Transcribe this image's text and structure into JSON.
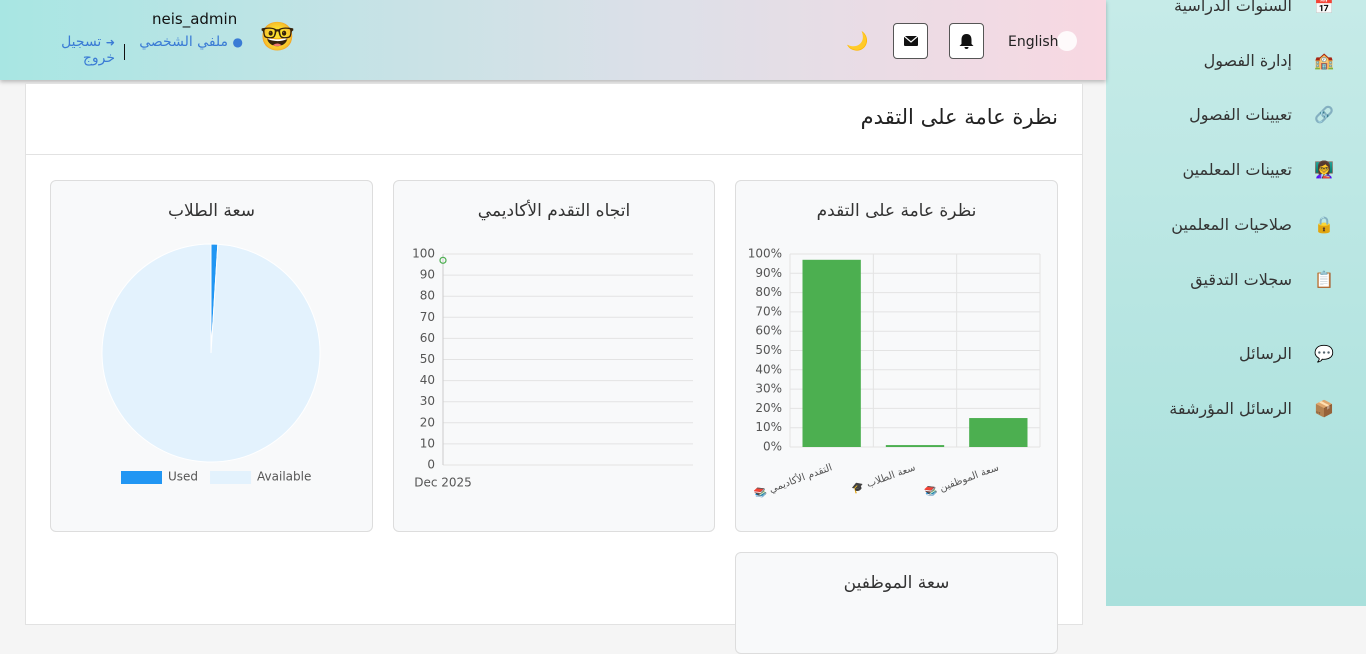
{
  "header": {
    "language": "English",
    "username": "neis_admin",
    "profile": "ملفي الشخصي",
    "logout": "تسجيل خروج",
    "avatar": "🤓",
    "theme_icon": "🌙"
  },
  "sidebar": {
    "items": [
      {
        "icon": "📅",
        "label": "السنوات الدراسية"
      },
      {
        "icon": "🏫",
        "label": "إدارة الفصول"
      },
      {
        "icon": "🔗",
        "label": "تعيينات الفصول"
      },
      {
        "icon": "👩‍🏫",
        "label": "تعيينات المعلمين"
      },
      {
        "icon": "🔒",
        "label": "صلاحيات المعلمين"
      },
      {
        "icon": "📋",
        "label": "سجلات التدقيق"
      },
      {
        "icon": "💬",
        "label": "الرسائل"
      },
      {
        "icon": "📦",
        "label": "الرسائل المؤرشفة"
      }
    ]
  },
  "panel": {
    "title": "نظرة عامة على التقدم"
  },
  "chart_data": [
    {
      "type": "bar",
      "title": "نظرة عامة على التقدم",
      "categories": [
        "📚 التقدم الأكاديمي",
        "🎓 سعة الطلاب",
        "📚 سعة الموظفين"
      ],
      "values": [
        97,
        1,
        15
      ],
      "color": "#4caf50",
      "ylim": [
        0,
        100
      ],
      "yticks": [
        {
          "value": 0,
          "label": "0%"
        },
        {
          "value": 10,
          "label": "10%"
        },
        {
          "value": 20,
          "label": "20%"
        },
        {
          "value": 30,
          "label": "30%"
        },
        {
          "value": 40,
          "label": "40%"
        },
        {
          "value": 50,
          "label": "50%"
        },
        {
          "value": 60,
          "label": "60%"
        },
        {
          "value": 70,
          "label": "70%"
        },
        {
          "value": 80,
          "label": "80%"
        },
        {
          "value": 90,
          "label": "90%"
        },
        {
          "value": 100,
          "label": "100%"
        }
      ],
      "grid": true
    },
    {
      "type": "line",
      "title": "اتجاه التقدم الأكاديمي",
      "x": [
        "Dec 2025"
      ],
      "values": [
        97
      ],
      "color": "#4caf50",
      "ylim": [
        0,
        100
      ],
      "yticks": [
        0,
        10,
        20,
        30,
        40,
        50,
        60,
        70,
        80,
        90,
        100
      ],
      "grid": true
    },
    {
      "type": "pie",
      "title": "سعة الطلاب",
      "categories": [
        "Used",
        "Available"
      ],
      "values": [
        1,
        99
      ],
      "colors": [
        "#2196f3",
        "#e3f2fd"
      ],
      "legend": "bottom"
    }
  ],
  "staff_card": {
    "title": "سعة الموظفين"
  }
}
